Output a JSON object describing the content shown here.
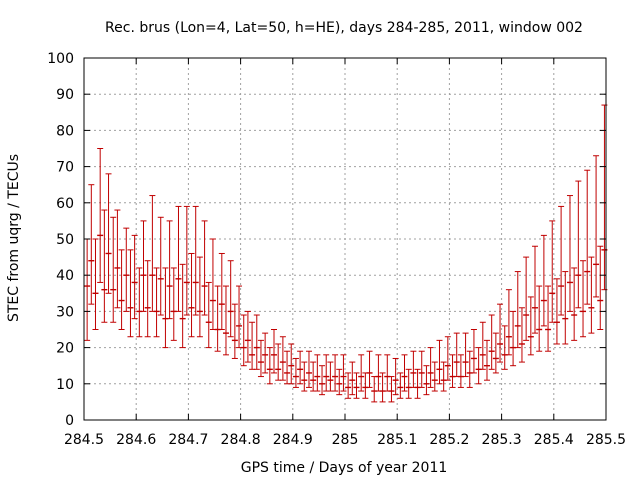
{
  "colors": {
    "series": "#c00000",
    "grid": "#a0a0a0",
    "axis": "#000000",
    "background": "#ffffff"
  },
  "chart_data": {
    "type": "errorbar",
    "title": "Rec. brus (Lon=4, Lat=50, h=HE), days 284-285, 2011, window 002",
    "xlabel": "GPS time / Days of year 2011",
    "ylabel": "STEC from uqrg / TECUs",
    "xlim": [
      284.5,
      285.5
    ],
    "ylim": [
      0,
      100
    ],
    "xticks": [
      284.5,
      284.6,
      284.7,
      284.8,
      284.9,
      285,
      285.1,
      285.2,
      285.3,
      285.4,
      285.5
    ],
    "xtick_labels": [
      "284.5",
      "284.6",
      "284.7",
      "284.8",
      "284.9",
      "285",
      "285.1",
      "285.2",
      "285.3",
      "285.4",
      "285.5"
    ],
    "yticks": [
      0,
      10,
      20,
      30,
      40,
      50,
      60,
      70,
      80,
      90,
      100
    ],
    "ytick_labels": [
      "0",
      "10",
      "20",
      "30",
      "40",
      "50",
      "60",
      "70",
      "80",
      "90",
      "100"
    ],
    "grid": true,
    "legend": "none",
    "x": [
      284.506,
      284.514,
      284.522,
      284.531,
      284.539,
      284.547,
      284.556,
      284.564,
      284.572,
      284.581,
      284.589,
      284.597,
      284.606,
      284.614,
      284.622,
      284.631,
      284.639,
      284.647,
      284.656,
      284.664,
      284.672,
      284.681,
      284.689,
      284.697,
      284.706,
      284.714,
      284.722,
      284.731,
      284.739,
      284.747,
      284.756,
      284.764,
      284.772,
      284.781,
      284.789,
      284.797,
      284.806,
      284.814,
      284.822,
      284.831,
      284.839,
      284.847,
      284.856,
      284.864,
      284.872,
      284.881,
      284.889,
      284.897,
      284.906,
      284.914,
      284.922,
      284.931,
      284.939,
      284.947,
      284.956,
      284.964,
      284.972,
      284.981,
      284.989,
      284.997,
      285.006,
      285.014,
      285.022,
      285.031,
      285.039,
      285.047,
      285.056,
      285.064,
      285.072,
      285.081,
      285.089,
      285.097,
      285.106,
      285.114,
      285.122,
      285.131,
      285.139,
      285.147,
      285.156,
      285.164,
      285.172,
      285.181,
      285.189,
      285.197,
      285.206,
      285.214,
      285.222,
      285.231,
      285.239,
      285.247,
      285.256,
      285.264,
      285.272,
      285.281,
      285.289,
      285.297,
      285.306,
      285.314,
      285.322,
      285.331,
      285.339,
      285.347,
      285.356,
      285.364,
      285.372,
      285.381,
      285.389,
      285.397,
      285.406,
      285.414,
      285.422,
      285.431,
      285.439,
      285.447,
      285.456,
      285.464,
      285.472,
      285.481,
      285.489,
      285.497
    ],
    "y": [
      37,
      44,
      35,
      51,
      36,
      46,
      36,
      42,
      33,
      40,
      31,
      38,
      30,
      40,
      31,
      40,
      30,
      39,
      28,
      37,
      30,
      39,
      28,
      38,
      31,
      38,
      30,
      37,
      27,
      33,
      25,
      32,
      24,
      30,
      22,
      26,
      20,
      22,
      18,
      20,
      16,
      18,
      14,
      18,
      14,
      16,
      13,
      15,
      12,
      14,
      11,
      13,
      11,
      12,
      10,
      12,
      11,
      12,
      10,
      12,
      9,
      11,
      9,
      12,
      9,
      13,
      8,
      12,
      8,
      12,
      8,
      11,
      9,
      12,
      9,
      13,
      9,
      13,
      10,
      13,
      11,
      14,
      11,
      15,
      12,
      16,
      12,
      16,
      13,
      17,
      14,
      18,
      15,
      19,
      17,
      21,
      18,
      23,
      20,
      26,
      21,
      29,
      23,
      31,
      25,
      33,
      25,
      35,
      27,
      37,
      28,
      38,
      29,
      40,
      30,
      41,
      31,
      43,
      33,
      47
    ],
    "yerr_low": [
      15,
      12,
      10,
      13,
      9,
      11,
      9,
      11,
      8,
      10,
      8,
      10,
      7,
      10,
      8,
      10,
      7,
      10,
      8,
      9,
      8,
      9,
      8,
      9,
      8,
      9,
      7,
      8,
      7,
      8,
      6,
      7,
      6,
      7,
      5,
      6,
      5,
      6,
      4,
      6,
      4,
      5,
      4,
      5,
      3,
      5,
      3,
      5,
      3,
      4,
      3,
      4,
      3,
      4,
      3,
      4,
      3,
      4,
      3,
      4,
      3,
      4,
      3,
      4,
      3,
      4,
      3,
      4,
      3,
      4,
      3,
      4,
      3,
      4,
      3,
      4,
      3,
      4,
      3,
      4,
      3,
      4,
      3,
      4,
      3,
      4,
      3,
      4,
      4,
      4,
      4,
      4,
      4,
      5,
      4,
      5,
      4,
      5,
      5,
      6,
      5,
      7,
      5,
      7,
      6,
      7,
      6,
      8,
      6,
      8,
      7,
      8,
      7,
      9,
      7,
      9,
      7,
      9,
      8,
      11
    ],
    "yerr_high": [
      13,
      21,
      15,
      24,
      22,
      22,
      20,
      16,
      14,
      13,
      16,
      13,
      12,
      15,
      13,
      22,
      12,
      17,
      14,
      18,
      12,
      20,
      15,
      21,
      15,
      21,
      15,
      18,
      11,
      17,
      12,
      14,
      13,
      14,
      10,
      11,
      9,
      8,
      9,
      9,
      6,
      6,
      6,
      7,
      7,
      7,
      6,
      6,
      5,
      5,
      5,
      6,
      5,
      6,
      5,
      6,
      5,
      6,
      4,
      6,
      4,
      5,
      4,
      6,
      4,
      6,
      4,
      6,
      5,
      6,
      4,
      6,
      4,
      6,
      5,
      6,
      5,
      6,
      5,
      7,
      5,
      8,
      5,
      8,
      6,
      8,
      6,
      8,
      6,
      8,
      6,
      9,
      7,
      10,
      7,
      11,
      8,
      13,
      10,
      15,
      10,
      16,
      11,
      17,
      12,
      18,
      12,
      20,
      12,
      22,
      13,
      24,
      13,
      26,
      14,
      28,
      14,
      30,
      15,
      40
    ]
  }
}
